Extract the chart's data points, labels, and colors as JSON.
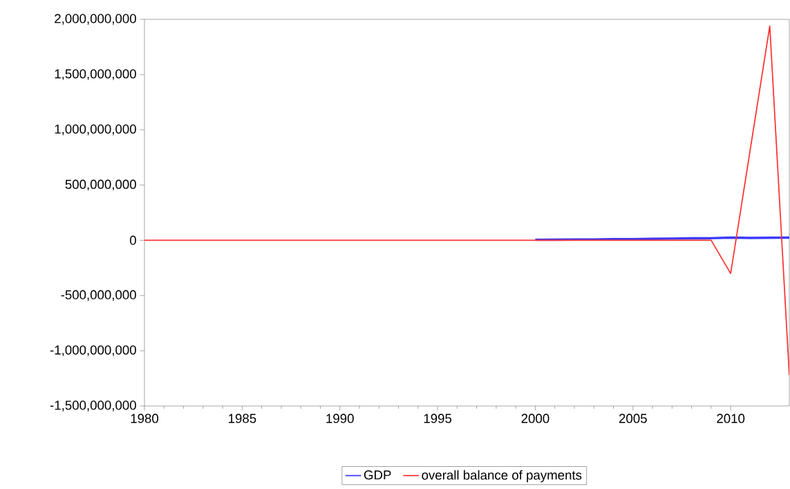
{
  "chart_data": {
    "type": "line",
    "xlim": [
      1980,
      2013
    ],
    "ylim": [
      -1500000000,
      2000000000
    ],
    "xticks": [
      1980,
      1985,
      1990,
      1995,
      2000,
      2005,
      2010
    ],
    "yticks": [
      {
        "value": -1500000000,
        "label": "-1,500,000,000"
      },
      {
        "value": -1000000000,
        "label": "-1,000,000,000"
      },
      {
        "value": -500000000,
        "label": "-500,000,000"
      },
      {
        "value": 0,
        "label": "0"
      },
      {
        "value": 500000000,
        "label": "500,000,000"
      },
      {
        "value": 1000000000,
        "label": "1,000,000,000"
      },
      {
        "value": 1500000000,
        "label": "1,500,000,000"
      },
      {
        "value": 2000000000,
        "label": "2,000,000,000"
      }
    ],
    "legend": "bottom",
    "grid": false,
    "series": [
      {
        "name": "GDP",
        "color": "#3a3aff",
        "x": [
          2000,
          2001,
          2002,
          2003,
          2004,
          2005,
          2006,
          2007,
          2008,
          2009,
          2010,
          2011,
          2012,
          2013
        ],
        "values": [
          5000000,
          6000000,
          7000000,
          8000000,
          10000000,
          11000000,
          13000000,
          16000000,
          18000000,
          19000000,
          25000000,
          22000000,
          23000000,
          24000000
        ]
      },
      {
        "name": "overall balance of payments",
        "color": "#ff3030",
        "x": [
          1980,
          1981,
          1982,
          1983,
          1984,
          1985,
          1986,
          1987,
          1988,
          1989,
          1990,
          1991,
          1992,
          1993,
          1994,
          1995,
          1996,
          1997,
          1998,
          1999,
          2000,
          2001,
          2002,
          2003,
          2004,
          2005,
          2006,
          2007,
          2008,
          2009,
          2010,
          2011,
          2012,
          2013
        ],
        "values": [
          0,
          0,
          0,
          0,
          0,
          0,
          0,
          0,
          0,
          0,
          0,
          0,
          0,
          0,
          0,
          0,
          0,
          0,
          0,
          0,
          0,
          0,
          0,
          0,
          0,
          0,
          0,
          0,
          0,
          0,
          -300000000,
          820000000,
          1940000000,
          -1220000000
        ]
      }
    ]
  }
}
